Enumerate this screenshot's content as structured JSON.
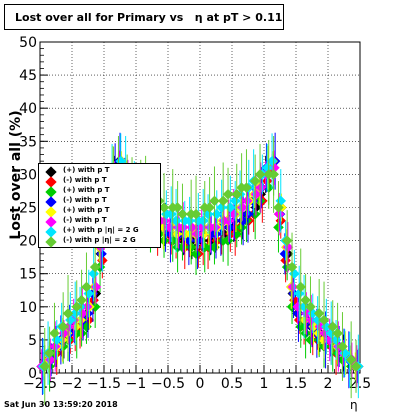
{
  "title": "Lost over all for Primary vs   η at pT > 0.11",
  "footer_date": "Sat Jun 30 13:59:20 2018",
  "colors": {
    "black": "#000000",
    "red": "#ff0000",
    "green": "#00cc00",
    "blue": "#0000ff",
    "yellow": "#ffff00",
    "magenta": "#ff00ff",
    "cyan": "#00e5ff",
    "lightgreen": "#66cc33"
  },
  "chart_data": {
    "type": "scatter",
    "xlabel": "η",
    "ylabel": "Lost over all (%)",
    "xlim": [
      -2.5,
      2.5
    ],
    "ylim": [
      0,
      50
    ],
    "x_ticks": [
      "−2.5",
      "−2",
      "−1.5",
      "−1",
      "−0.5",
      "0",
      "0.5",
      "1",
      "1.5",
      "2",
      "2.5"
    ],
    "y_ticks": [
      "0",
      "5",
      "10",
      "15",
      "20",
      "25",
      "30",
      "35",
      "40",
      "45",
      "50"
    ],
    "grid": true,
    "legend_placement": "left-middle",
    "x": [
      -2.45,
      -2.35,
      -2.25,
      -2.15,
      -2.05,
      -1.95,
      -1.85,
      -1.75,
      -1.65,
      -1.55,
      -1.45,
      -1.35,
      -1.25,
      -1.15,
      -1.05,
      -0.95,
      -0.85,
      -0.75,
      -0.65,
      -0.55,
      -0.45,
      -0.35,
      -0.25,
      -0.15,
      -0.05,
      0.05,
      0.15,
      0.25,
      0.35,
      0.45,
      0.55,
      0.65,
      0.75,
      0.85,
      0.95,
      1.05,
      1.15,
      1.25,
      1.35,
      1.45,
      1.55,
      1.65,
      1.75,
      1.85,
      1.95,
      2.05,
      2.15,
      2.25,
      2.35,
      2.45
    ],
    "series": [
      {
        "name": "(+) with p T",
        "color": "#000000",
        "values": [
          1,
          2,
          4,
          5,
          6,
          7,
          8,
          9,
          12,
          18,
          24,
          30,
          32,
          30,
          27,
          25,
          24,
          23,
          22,
          22,
          21,
          21,
          20,
          20,
          19,
          20,
          20,
          21,
          21,
          22,
          22,
          23,
          24,
          25,
          27,
          30,
          32,
          24,
          18,
          12,
          9,
          8,
          7,
          6,
          6,
          5,
          4,
          3,
          2,
          1
        ]
      },
      {
        "name": "(-) with p T",
        "color": "#ff0000",
        "values": [
          1,
          2,
          3,
          4,
          5,
          6,
          7,
          8,
          11,
          17,
          23,
          29,
          31,
          29,
          26,
          24,
          23,
          22,
          21,
          21,
          20,
          20,
          19,
          19,
          18,
          19,
          19,
          20,
          20,
          21,
          21,
          22,
          23,
          24,
          26,
          29,
          31,
          23,
          17,
          11,
          8,
          7,
          6,
          5,
          5,
          4,
          3,
          3,
          2,
          1
        ]
      },
      {
        "name": "(+) with p T",
        "color": "#00cc00",
        "values": [
          1,
          1,
          3,
          4,
          5,
          6,
          6,
          7,
          10,
          16,
          22,
          28,
          30,
          28,
          26,
          24,
          23,
          22,
          21,
          20,
          20,
          19,
          19,
          19,
          18,
          19,
          19,
          19,
          20,
          20,
          21,
          22,
          23,
          24,
          26,
          28,
          30,
          22,
          16,
          10,
          7,
          6,
          5,
          5,
          4,
          4,
          3,
          2,
          1,
          1
        ]
      },
      {
        "name": "(-) with p T",
        "color": "#0000ff",
        "values": [
          1,
          2,
          4,
          5,
          6,
          7,
          8,
          9,
          12,
          18,
          24,
          31,
          32,
          30,
          28,
          25,
          24,
          23,
          22,
          22,
          21,
          21,
          21,
          20,
          20,
          21,
          21,
          21,
          22,
          22,
          23,
          23,
          24,
          26,
          28,
          31,
          32,
          24,
          18,
          12,
          9,
          8,
          7,
          6,
          5,
          5,
          4,
          3,
          2,
          1
        ]
      },
      {
        "name": "(+) with p T",
        "color": "#ffff00",
        "values": [
          1,
          2,
          4,
          5,
          6,
          7,
          8,
          10,
          13,
          19,
          25,
          31,
          32,
          30,
          27,
          26,
          25,
          24,
          23,
          22,
          22,
          21,
          21,
          21,
          21,
          21,
          22,
          22,
          23,
          23,
          24,
          25,
          26,
          27,
          28,
          31,
          32,
          25,
          19,
          13,
          10,
          8,
          7,
          6,
          5,
          5,
          4,
          3,
          2,
          1
        ]
      },
      {
        "name": "(-) with p T",
        "color": "#ff00ff",
        "values": [
          1,
          2,
          4,
          6,
          7,
          8,
          9,
          10,
          13,
          19,
          25,
          30,
          31,
          29,
          27,
          26,
          25,
          24,
          23,
          23,
          22,
          22,
          22,
          22,
          21,
          22,
          22,
          22,
          23,
          23,
          24,
          25,
          26,
          27,
          28,
          30,
          31,
          24,
          19,
          13,
          10,
          9,
          8,
          7,
          6,
          5,
          4,
          3,
          2,
          1
        ]
      },
      {
        "name": "(+) with p |η| = 2 G",
        "color": "#00e5ff",
        "values": [
          1,
          3,
          5,
          7,
          8,
          9,
          10,
          12,
          15,
          20,
          26,
          31,
          32,
          31,
          29,
          28,
          27,
          26,
          25,
          24,
          24,
          23,
          23,
          23,
          23,
          23,
          24,
          24,
          25,
          25,
          26,
          27,
          28,
          29,
          30,
          31,
          32,
          26,
          20,
          15,
          12,
          10,
          9,
          8,
          7,
          6,
          5,
          3,
          2,
          1
        ]
      },
      {
        "name": "(-) with p |η| = 2 G",
        "color": "#66cc33",
        "values": [
          1,
          3,
          6,
          7,
          9,
          10,
          11,
          13,
          16,
          20,
          25,
          29,
          30,
          29,
          28,
          27,
          27,
          26,
          26,
          25,
          25,
          25,
          24,
          24,
          24,
          25,
          25,
          26,
          26,
          27,
          27,
          28,
          28,
          29,
          30,
          30,
          30,
          25,
          20,
          16,
          13,
          11,
          10,
          9,
          8,
          7,
          6,
          4,
          2,
          1
        ]
      }
    ]
  }
}
